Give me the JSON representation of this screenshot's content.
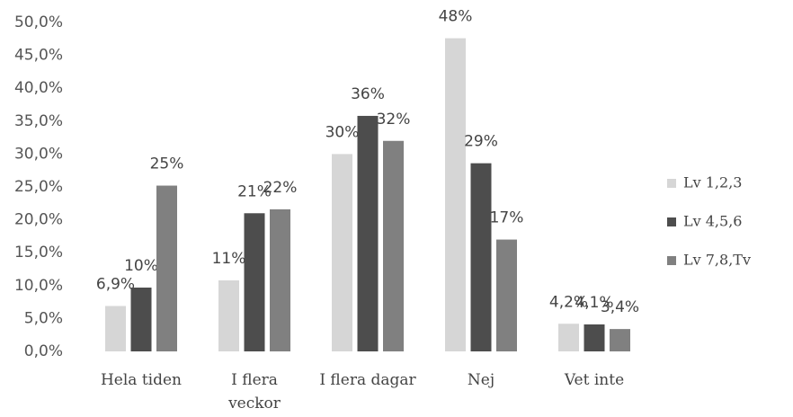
{
  "chart_data": {
    "type": "bar",
    "categories": [
      "Hela tiden",
      "I flera veckor",
      "I flera dagar",
      "Nej",
      "Vet inte"
    ],
    "series": [
      {
        "name": "Lv 1,2,3",
        "color": "#d6d6d6",
        "values": [
          6.9,
          10.8,
          30,
          47.6,
          4.2
        ],
        "value_labels": [
          "6,9%",
          "11%",
          "30%",
          "48%",
          "4,2%"
        ]
      },
      {
        "name": "Lv 4,5,6",
        "color": "#4d4d4d",
        "values": [
          9.7,
          21,
          35.8,
          28.6,
          4.1
        ],
        "value_labels": [
          "10%",
          "21%",
          "36%",
          "29%",
          "4,1%"
        ]
      },
      {
        "name": "Lv 7,8,Tv",
        "color": "#808080",
        "values": [
          25.2,
          21.6,
          32,
          17,
          3.4
        ],
        "value_labels": [
          "25%",
          "22%",
          "32%",
          "17%",
          "3,4%"
        ]
      }
    ],
    "ylim": [
      0,
      50
    ],
    "yticks": [
      {
        "value": 0,
        "label": "0,0%"
      },
      {
        "value": 5,
        "label": "5,0%"
      },
      {
        "value": 10,
        "label": "10,0%"
      },
      {
        "value": 15,
        "label": "15,0%"
      },
      {
        "value": 20,
        "label": "20,0%"
      },
      {
        "value": 25,
        "label": "25,0%"
      },
      {
        "value": 30,
        "label": "30,0%"
      },
      {
        "value": 35,
        "label": "35,0%"
      },
      {
        "value": 40,
        "label": "40,0%"
      },
      {
        "value": 45,
        "label": "45,0%"
      },
      {
        "value": 50,
        "label": "50,0%"
      }
    ],
    "legend": "right"
  }
}
